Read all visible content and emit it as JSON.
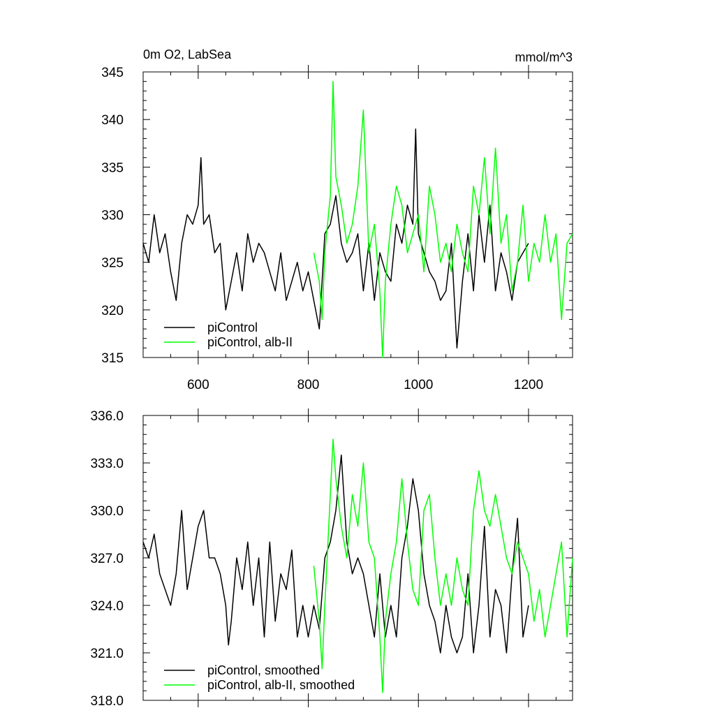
{
  "chart_data": [
    {
      "type": "line",
      "title": "0m O2, LabSea",
      "units": "mmol/m^3",
      "xlim": [
        500,
        1280
      ],
      "ylim": [
        315,
        345
      ],
      "yticks": [
        "315",
        "320",
        "325",
        "330",
        "335",
        "340",
        "345"
      ],
      "xticks": [
        "600",
        "800",
        "1000",
        "1200"
      ],
      "legend_position": "bottom-left",
      "series": [
        {
          "name": "piControl",
          "color": "#000000",
          "x": [
            500,
            510,
            520,
            530,
            540,
            550,
            560,
            570,
            580,
            590,
            600,
            605,
            610,
            620,
            630,
            640,
            650,
            660,
            670,
            680,
            690,
            700,
            710,
            720,
            730,
            740,
            750,
            760,
            770,
            780,
            790,
            800,
            810,
            820,
            825,
            830,
            840,
            850,
            860,
            870,
            880,
            890,
            900,
            910,
            920,
            930,
            940,
            950,
            960,
            970,
            980,
            990,
            995,
            1000,
            1010,
            1020,
            1030,
            1040,
            1050,
            1060,
            1070,
            1080,
            1090,
            1100,
            1110,
            1120,
            1130,
            1140,
            1150,
            1160,
            1170,
            1180,
            1190,
            1200
          ],
          "values": [
            327,
            325,
            330,
            326,
            328,
            324,
            321,
            327,
            330,
            329,
            331,
            336,
            329,
            330,
            326,
            327,
            320,
            323,
            326,
            322,
            328,
            325,
            327,
            326,
            324,
            322,
            326,
            321,
            323,
            325,
            322,
            324,
            321,
            318,
            323,
            328,
            329,
            332,
            327,
            325,
            326,
            328,
            322,
            327,
            321,
            326,
            324,
            323,
            329,
            327,
            331,
            329,
            339,
            328,
            326,
            324,
            323,
            321,
            322,
            327,
            316,
            323,
            328,
            322,
            330,
            325,
            331,
            322,
            326,
            324,
            321,
            325,
            326,
            327
          ]
        },
        {
          "name": "piControl, alb-II",
          "color": "#00ff00",
          "x": [
            810,
            820,
            825,
            830,
            835,
            840,
            845,
            850,
            860,
            870,
            880,
            890,
            900,
            910,
            920,
            930,
            935,
            940,
            950,
            960,
            970,
            980,
            990,
            1000,
            1010,
            1020,
            1030,
            1040,
            1050,
            1060,
            1070,
            1080,
            1090,
            1100,
            1110,
            1120,
            1130,
            1140,
            1150,
            1160,
            1170,
            1180,
            1190,
            1200,
            1210,
            1220,
            1230,
            1240,
            1250,
            1260,
            1270,
            1280
          ],
          "values": [
            326,
            323,
            319,
            326,
            329,
            332,
            344,
            334,
            331,
            327,
            329,
            333,
            341,
            326,
            329,
            322,
            315,
            323,
            329,
            333,
            331,
            326,
            328,
            330,
            324,
            333,
            330,
            325,
            327,
            324,
            329,
            326,
            324,
            333,
            330,
            336,
            328,
            337,
            327,
            330,
            322,
            325,
            331,
            323,
            327,
            325,
            330,
            325,
            328,
            319,
            327,
            328
          ]
        }
      ]
    },
    {
      "type": "line",
      "title": "",
      "xlim": [
        500,
        1280
      ],
      "ylim": [
        318,
        336
      ],
      "yticks": [
        "318.0",
        "321.0",
        "324.0",
        "327.0",
        "330.0",
        "333.0",
        "336.0"
      ],
      "xticks": [],
      "legend_position": "bottom-left",
      "series": [
        {
          "name": "piControl, smoothed",
          "color": "#000000",
          "x": [
            500,
            510,
            520,
            530,
            540,
            550,
            560,
            570,
            580,
            590,
            600,
            610,
            620,
            630,
            640,
            650,
            655,
            660,
            670,
            680,
            690,
            700,
            710,
            720,
            730,
            740,
            750,
            760,
            770,
            780,
            790,
            800,
            810,
            820,
            830,
            840,
            850,
            860,
            870,
            880,
            890,
            900,
            910,
            920,
            930,
            940,
            950,
            960,
            970,
            980,
            990,
            1000,
            1010,
            1020,
            1030,
            1040,
            1050,
            1060,
            1070,
            1080,
            1090,
            1100,
            1110,
            1120,
            1130,
            1140,
            1150,
            1160,
            1170,
            1180,
            1190,
            1200
          ],
          "values": [
            328,
            327,
            328.5,
            326,
            325,
            324,
            326,
            330,
            325,
            327,
            329,
            330,
            327,
            327,
            326,
            324,
            321.5,
            323,
            327,
            325,
            328,
            324,
            327,
            322,
            328,
            323,
            326,
            325,
            327.5,
            322,
            324,
            322,
            324,
            322.5,
            327,
            328,
            330,
            333.5,
            328,
            326,
            327,
            326,
            324,
            322,
            326,
            322,
            324,
            322,
            327,
            329,
            332,
            330,
            326,
            324,
            323,
            321,
            324,
            322,
            321,
            322,
            326,
            321,
            324,
            329,
            322,
            325,
            324,
            321,
            326,
            329.5,
            322,
            324
          ]
        },
        {
          "name": "piControl, alb-II, smoothed",
          "color": "#00ff00",
          "x": [
            810,
            820,
            825,
            830,
            840,
            845,
            850,
            860,
            870,
            880,
            890,
            900,
            910,
            920,
            930,
            935,
            940,
            950,
            960,
            970,
            980,
            990,
            1000,
            1010,
            1020,
            1030,
            1040,
            1050,
            1060,
            1070,
            1080,
            1090,
            1100,
            1110,
            1120,
            1130,
            1140,
            1150,
            1160,
            1170,
            1180,
            1190,
            1200,
            1210,
            1220,
            1230,
            1240,
            1250,
            1260,
            1270,
            1280
          ],
          "values": [
            326.5,
            323,
            320,
            324,
            331,
            334.5,
            332,
            329,
            327,
            331,
            329,
            333,
            328,
            327,
            322,
            318.5,
            323,
            326,
            328,
            332,
            328,
            325,
            324,
            330,
            331,
            327,
            324,
            326,
            324,
            327,
            325,
            324,
            330,
            332.5,
            330,
            329,
            331,
            329,
            327,
            326,
            328,
            327,
            326,
            323,
            325,
            322,
            324,
            326,
            328,
            322,
            327
          ]
        }
      ]
    }
  ]
}
